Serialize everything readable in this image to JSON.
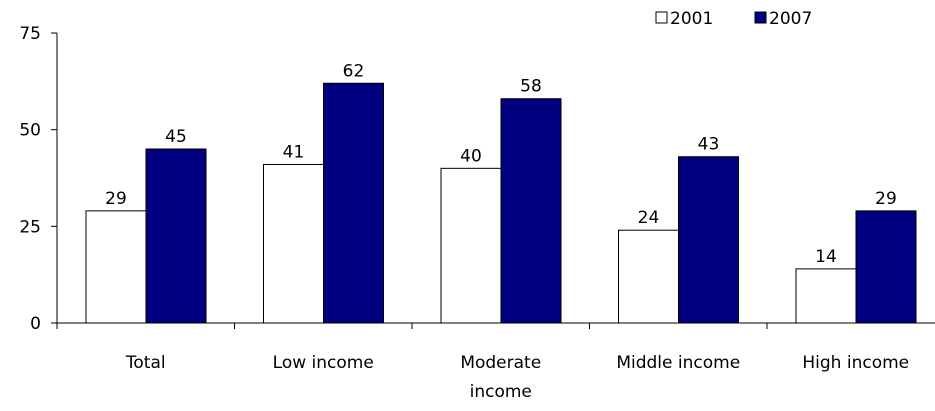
{
  "chart_data": {
    "type": "bar",
    "title": "",
    "xlabel": "",
    "ylabel": "",
    "categories": [
      "Total",
      "Low income",
      "Moderate income",
      "Middle income",
      "High income"
    ],
    "series": [
      {
        "name": "2001",
        "values": [
          29,
          41,
          40,
          24,
          14
        ],
        "fill": "#ffffff",
        "stroke": "#000000"
      },
      {
        "name": "2007",
        "values": [
          45,
          62,
          58,
          43,
          29
        ],
        "fill": "#000080",
        "stroke": "#000000"
      }
    ],
    "ylim": [
      0,
      75
    ],
    "yticks": [
      0,
      25,
      50,
      75
    ],
    "grid": false,
    "legend_position": "top-right",
    "data_labels": true
  }
}
